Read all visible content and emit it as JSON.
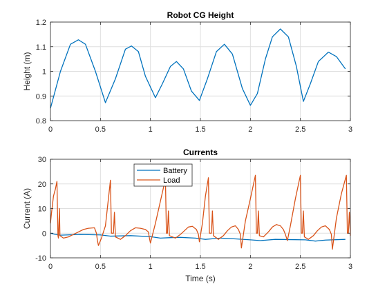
{
  "colors": {
    "series1": "#0072BD",
    "series2": "#D95319",
    "grid": "#dfdfdf",
    "axis": "#262626",
    "background": "#ffffff"
  },
  "chart_data": [
    {
      "type": "line",
      "title": "Robot CG Height",
      "xlabel": "",
      "ylabel": "Height (m)",
      "xlim": [
        0,
        3
      ],
      "ylim": [
        0.8,
        1.2
      ],
      "grid": true,
      "xticks": [
        "0",
        "0.5",
        "1",
        "1.5",
        "2",
        "2.5",
        "3"
      ],
      "yticks": [
        "0.8",
        "0.9",
        "1",
        "1.1",
        "1.2"
      ],
      "series": [
        {
          "name": "",
          "color": "#0072BD",
          "points": [
            [
              0.0,
              0.85
            ],
            [
              0.1,
              1.0
            ],
            [
              0.2,
              1.11
            ],
            [
              0.28,
              1.128
            ],
            [
              0.35,
              1.11
            ],
            [
              0.45,
              1.0
            ],
            [
              0.55,
              0.873
            ],
            [
              0.65,
              0.97
            ],
            [
              0.75,
              1.09
            ],
            [
              0.81,
              1.103
            ],
            [
              0.88,
              1.08
            ],
            [
              0.95,
              0.98
            ],
            [
              1.05,
              0.893
            ],
            [
              1.12,
              0.95
            ],
            [
              1.2,
              1.02
            ],
            [
              1.26,
              1.04
            ],
            [
              1.33,
              1.01
            ],
            [
              1.41,
              0.92
            ],
            [
              1.49,
              0.882
            ],
            [
              1.57,
              0.97
            ],
            [
              1.66,
              1.08
            ],
            [
              1.74,
              1.11
            ],
            [
              1.82,
              1.07
            ],
            [
              1.92,
              0.93
            ],
            [
              2.0,
              0.862
            ],
            [
              2.07,
              0.91
            ],
            [
              2.15,
              1.05
            ],
            [
              2.22,
              1.14
            ],
            [
              2.3,
              1.172
            ],
            [
              2.38,
              1.14
            ],
            [
              2.46,
              1.02
            ],
            [
              2.53,
              0.878
            ],
            [
              2.6,
              0.95
            ],
            [
              2.68,
              1.04
            ],
            [
              2.78,
              1.078
            ],
            [
              2.86,
              1.06
            ],
            [
              2.95,
              1.01
            ]
          ]
        }
      ]
    },
    {
      "type": "line",
      "title": "Currents",
      "xlabel": "Time (s)",
      "ylabel": "Current (A)",
      "xlim": [
        0,
        3
      ],
      "ylim": [
        -10,
        30
      ],
      "grid": true,
      "xticks": [
        "0",
        "0.5",
        "1",
        "1.5",
        "2",
        "2.5",
        "3"
      ],
      "yticks": [
        "-10",
        "0",
        "10",
        "20",
        "30"
      ],
      "legend": "top-left",
      "series": [
        {
          "name": "Battery",
          "color": "#0072BD",
          "points": [
            [
              0.0,
              0.0
            ],
            [
              0.05,
              -0.5
            ],
            [
              0.1,
              -0.8
            ],
            [
              0.3,
              -0.5
            ],
            [
              0.5,
              -0.7
            ],
            [
              0.6,
              -1.2
            ],
            [
              0.8,
              -1.0
            ],
            [
              1.0,
              -1.4
            ],
            [
              1.1,
              -2.0
            ],
            [
              1.2,
              -1.8
            ],
            [
              1.3,
              -1.7
            ],
            [
              1.45,
              -2.0
            ],
            [
              1.55,
              -2.5
            ],
            [
              1.7,
              -2.0
            ],
            [
              1.85,
              -2.3
            ],
            [
              2.0,
              -2.7
            ],
            [
              2.1,
              -3.0
            ],
            [
              2.25,
              -2.5
            ],
            [
              2.4,
              -2.6
            ],
            [
              2.55,
              -2.7
            ],
            [
              2.65,
              -3.2
            ],
            [
              2.75,
              -2.8
            ],
            [
              2.95,
              -2.5
            ]
          ]
        },
        {
          "name": "Load",
          "color": "#D95319",
          "points": [
            [
              0.0,
              4.0
            ],
            [
              0.01,
              8.0
            ],
            [
              0.03,
              15.0
            ],
            [
              0.05,
              18.0
            ],
            [
              0.065,
              21.0
            ],
            [
              0.075,
              -1.0
            ],
            [
              0.08,
              -2.0
            ],
            [
              0.09,
              10.0
            ],
            [
              0.095,
              -1.0
            ],
            [
              0.13,
              -2.0
            ],
            [
              0.18,
              -1.5
            ],
            [
              0.23,
              -0.5
            ],
            [
              0.28,
              0.5
            ],
            [
              0.33,
              1.5
            ],
            [
              0.38,
              2.0
            ],
            [
              0.44,
              2.2
            ],
            [
              0.46,
              0.0
            ],
            [
              0.47,
              -3.0
            ],
            [
              0.48,
              -5.0
            ],
            [
              0.51,
              -2.0
            ],
            [
              0.55,
              3.0
            ],
            [
              0.6,
              21.5
            ],
            [
              0.61,
              0.0
            ],
            [
              0.63,
              0.0
            ],
            [
              0.64,
              8.5
            ],
            [
              0.65,
              -1.5
            ],
            [
              0.7,
              -2.5
            ],
            [
              0.75,
              -1.0
            ],
            [
              0.8,
              1.0
            ],
            [
              0.85,
              2.2
            ],
            [
              0.9,
              2.0
            ],
            [
              0.95,
              1.5
            ],
            [
              0.98,
              0.5
            ],
            [
              0.99,
              -2.0
            ],
            [
              1.0,
              -4.0
            ],
            [
              1.05,
              4.0
            ],
            [
              1.1,
              13.0
            ],
            [
              1.15,
              22.0
            ],
            [
              1.16,
              0.0
            ],
            [
              1.17,
              0.0
            ],
            [
              1.18,
              9.0
            ],
            [
              1.19,
              -1.0
            ],
            [
              1.25,
              -2.0
            ],
            [
              1.3,
              -0.5
            ],
            [
              1.34,
              1.0
            ],
            [
              1.38,
              2.5
            ],
            [
              1.42,
              2.8
            ],
            [
              1.46,
              1.5
            ],
            [
              1.48,
              -0.5
            ],
            [
              1.49,
              -3.5
            ],
            [
              1.52,
              4.0
            ],
            [
              1.55,
              15.0
            ],
            [
              1.58,
              22.5
            ],
            [
              1.59,
              0.0
            ],
            [
              1.61,
              0.0
            ],
            [
              1.62,
              9.0
            ],
            [
              1.63,
              -1.0
            ],
            [
              1.68,
              -2.5
            ],
            [
              1.73,
              -1.0
            ],
            [
              1.77,
              1.0
            ],
            [
              1.81,
              2.5
            ],
            [
              1.85,
              3.0
            ],
            [
              1.88,
              1.5
            ],
            [
              1.9,
              -0.5
            ],
            [
              1.91,
              -6.0
            ],
            [
              1.95,
              5.0
            ],
            [
              2.0,
              14.0
            ],
            [
              2.05,
              23.5
            ],
            [
              2.06,
              0.0
            ],
            [
              2.07,
              0.0
            ],
            [
              2.08,
              9.0
            ],
            [
              2.09,
              -1.0
            ],
            [
              2.13,
              -1.5
            ],
            [
              2.18,
              0.5
            ],
            [
              2.22,
              2.5
            ],
            [
              2.26,
              3.5
            ],
            [
              2.3,
              3.0
            ],
            [
              2.33,
              1.5
            ],
            [
              2.35,
              -0.5
            ],
            [
              2.37,
              -3.0
            ],
            [
              2.4,
              3.0
            ],
            [
              2.45,
              14.0
            ],
            [
              2.5,
              23.5
            ],
            [
              2.51,
              0.0
            ],
            [
              2.52,
              0.0
            ],
            [
              2.53,
              9.0
            ],
            [
              2.54,
              -1.5
            ],
            [
              2.58,
              -2.5
            ],
            [
              2.63,
              -1.0
            ],
            [
              2.67,
              1.0
            ],
            [
              2.71,
              2.5
            ],
            [
              2.75,
              3.0
            ],
            [
              2.79,
              1.5
            ],
            [
              2.81,
              -0.5
            ],
            [
              2.82,
              -6.5
            ],
            [
              2.86,
              6.0
            ],
            [
              2.91,
              16.0
            ],
            [
              2.96,
              23.5
            ],
            [
              2.97,
              0.0
            ],
            [
              2.98,
              0.0
            ],
            [
              2.99,
              8.5
            ],
            [
              3.0,
              -1.0
            ]
          ]
        }
      ]
    }
  ]
}
